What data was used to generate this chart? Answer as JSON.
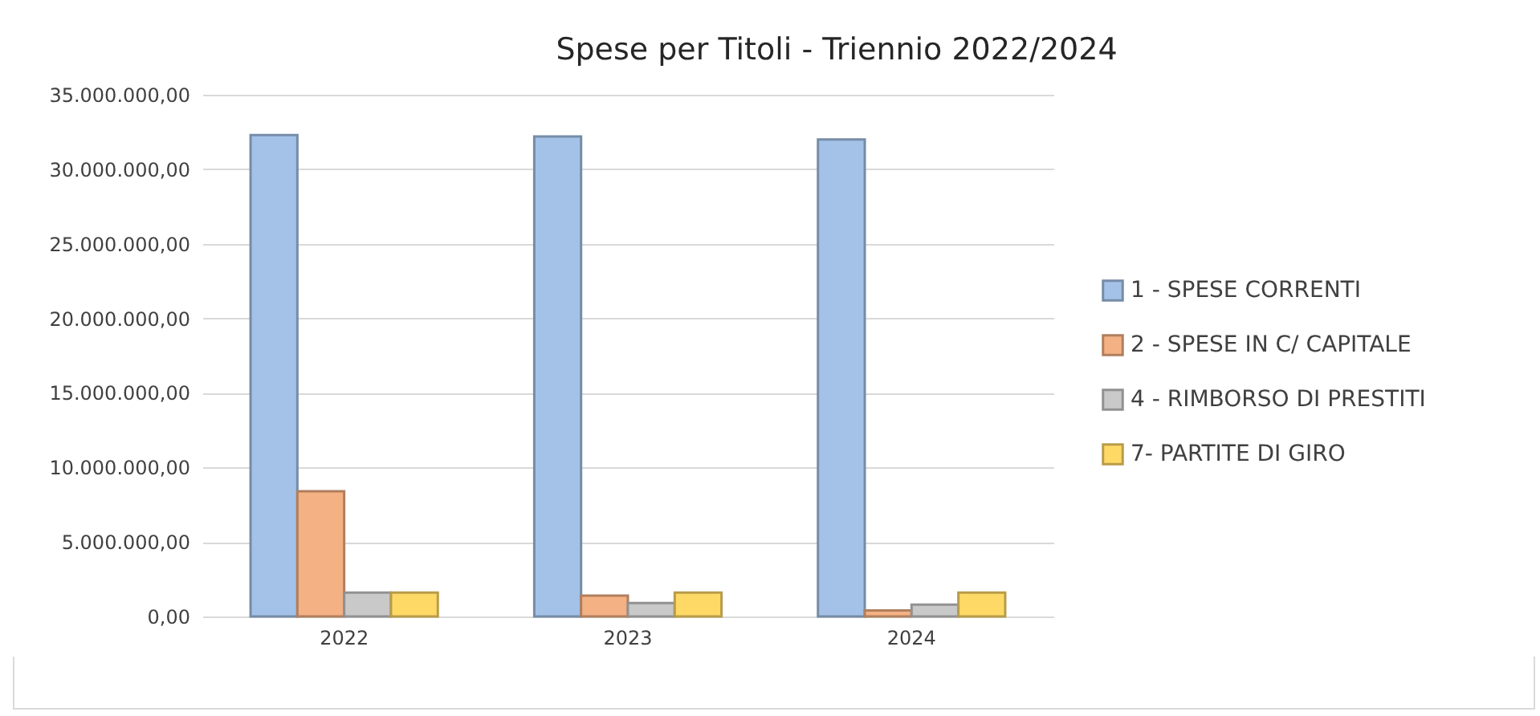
{
  "chart_data": {
    "type": "bar",
    "title": "Spese per Titoli - Triennio 2022/2024",
    "categories": [
      "2022",
      "2023",
      "2024"
    ],
    "series": [
      {
        "name": "1 - SPESE CORRENTI",
        "color": "#a4c2e8",
        "values": [
          32300000,
          32200000,
          32000000
        ]
      },
      {
        "name": "2 - SPESE IN C/ CAPITALE",
        "color": "#f4b183",
        "values": [
          8400000,
          1400000,
          400000
        ]
      },
      {
        "name": "4 - RIMBORSO DI PRESTITI",
        "color": "#c9c9c9",
        "values": [
          1600000,
          900000,
          800000
        ]
      },
      {
        "name": "7- PARTITE DI GIRO",
        "color": "#ffd966",
        "values": [
          1600000,
          1600000,
          1600000
        ]
      }
    ],
    "ylim": [
      0,
      35000000
    ],
    "yticks": [
      {
        "value": 0,
        "label": "0,00"
      },
      {
        "value": 5000000,
        "label": "5.000.000,00"
      },
      {
        "value": 10000000,
        "label": "10.000.000,00"
      },
      {
        "value": 15000000,
        "label": "15.000.000,00"
      },
      {
        "value": 20000000,
        "label": "20.000.000,00"
      },
      {
        "value": 25000000,
        "label": "25.000.000,00"
      },
      {
        "value": 30000000,
        "label": "30.000.000,00"
      },
      {
        "value": 35000000,
        "label": "35.000.000,00"
      }
    ],
    "grid": "y",
    "legend": "right"
  }
}
